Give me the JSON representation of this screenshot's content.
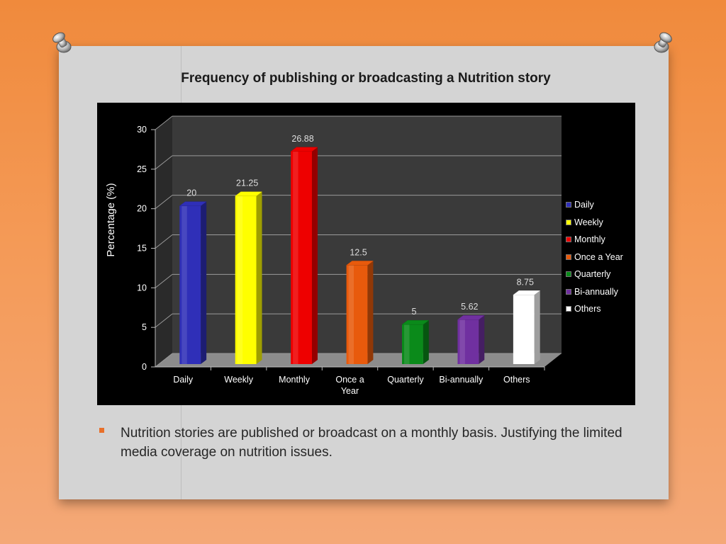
{
  "slide": {
    "title": "Frequency of publishing or broadcasting a Nutrition story",
    "bullet": "Nutrition stories are published or broadcast on a monthly basis. Justifying the limited media coverage on nutrition issues."
  },
  "chart_data": {
    "type": "bar",
    "style": "3d-column",
    "title": "",
    "xlabel": "",
    "ylabel": "Percentage (%)",
    "ylim": [
      0,
      30
    ],
    "yticks": [
      0,
      5,
      10,
      15,
      20,
      25,
      30
    ],
    "grid": true,
    "legend_position": "right",
    "categories": [
      "Daily",
      "Weekly",
      "Monthly",
      "Once a Year",
      "Quarterly",
      "Bi-annually",
      "Others"
    ],
    "values": [
      20,
      21.25,
      26.88,
      12.5,
      5,
      5.62,
      8.75
    ],
    "data_labels": [
      "20",
      "21.25",
      "26.88",
      "12.5",
      "5",
      "5.62",
      "8.75"
    ],
    "colors": [
      "#2f2fb8",
      "#ffff00",
      "#ee0000",
      "#e85a0c",
      "#0a8a1a",
      "#7030a0",
      "#ffffff"
    ],
    "legend": [
      "Daily",
      "Weekly",
      "Monthly",
      "Once a Year",
      "Quarterly",
      "Bi-annually",
      "Others"
    ]
  }
}
